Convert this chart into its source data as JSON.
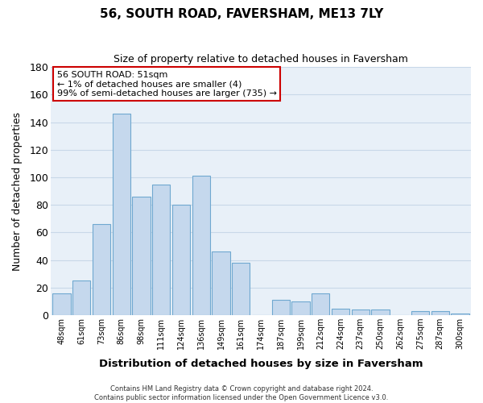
{
  "title": "56, SOUTH ROAD, FAVERSHAM, ME13 7LY",
  "subtitle": "Size of property relative to detached houses in Faversham",
  "xlabel": "Distribution of detached houses by size in Faversham",
  "ylabel": "Number of detached properties",
  "bar_labels": [
    "48sqm",
    "61sqm",
    "73sqm",
    "86sqm",
    "98sqm",
    "111sqm",
    "124sqm",
    "136sqm",
    "149sqm",
    "161sqm",
    "174sqm",
    "187sqm",
    "199sqm",
    "212sqm",
    "224sqm",
    "237sqm",
    "250sqm",
    "262sqm",
    "275sqm",
    "287sqm",
    "300sqm"
  ],
  "bar_values": [
    16,
    25,
    66,
    146,
    86,
    95,
    80,
    101,
    46,
    38,
    0,
    11,
    10,
    16,
    5,
    4,
    4,
    0,
    3,
    3,
    1
  ],
  "bar_color": "#c5d8ed",
  "bar_edge_color": "#6fa8d0",
  "ylim": [
    0,
    180
  ],
  "yticks": [
    0,
    20,
    40,
    60,
    80,
    100,
    120,
    140,
    160,
    180
  ],
  "annotation_title": "56 SOUTH ROAD: 51sqm",
  "annotation_line1": "← 1% of detached houses are smaller (4)",
  "annotation_line2": "99% of semi-detached houses are larger (735) →",
  "annotation_box_color": "#ffffff",
  "annotation_box_edge": "#cc0000",
  "footer_line1": "Contains HM Land Registry data © Crown copyright and database right 2024.",
  "footer_line2": "Contains public sector information licensed under the Open Government Licence v3.0.",
  "background_color": "#ffffff",
  "grid_color": "#c8d8e8",
  "bg_plot_color": "#e8f0f8"
}
